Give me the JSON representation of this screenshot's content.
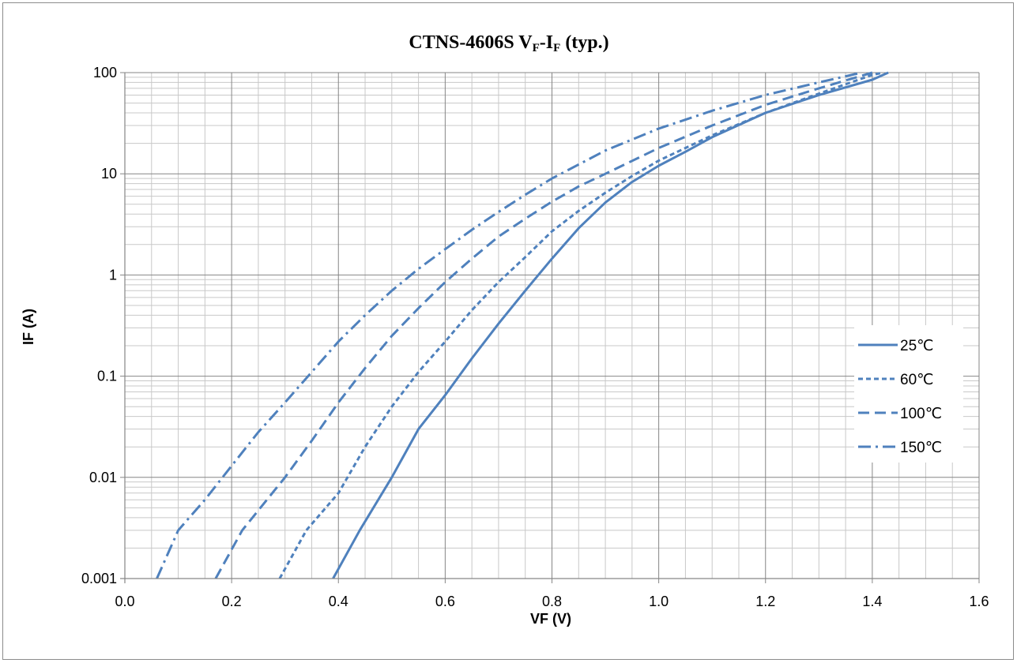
{
  "chart_data": {
    "type": "line",
    "title": {
      "main": "CTNS-4606S V",
      "sub1": "F",
      "mid": "-I",
      "sub2": "F",
      "tail": " (typ.)"
    },
    "xlabel": "VF (V)",
    "ylabel": "IF (A)",
    "xlim": [
      0.0,
      1.6
    ],
    "ylim": [
      0.001,
      100
    ],
    "y_scale": "log",
    "x_ticks": [
      "0.0",
      "0.2",
      "0.4",
      "0.6",
      "0.8",
      "1.0",
      "1.2",
      "1.4",
      "1.6"
    ],
    "x_tick_values": [
      0.0,
      0.2,
      0.4,
      0.6,
      0.8,
      1.0,
      1.2,
      1.4,
      1.6
    ],
    "y_ticks": [
      "0.001",
      "0.01",
      "0.1",
      "1",
      "10",
      "100"
    ],
    "y_tick_values": [
      0.001,
      0.01,
      0.1,
      1,
      10,
      100
    ],
    "grid": true,
    "legend_position": "right",
    "series": [
      {
        "name": "25℃",
        "style": "solid",
        "color": "#4f81bd",
        "points": [
          [
            0.39,
            0.001
          ],
          [
            0.44,
            0.003
          ],
          [
            0.5,
            0.01
          ],
          [
            0.55,
            0.03
          ],
          [
            0.6,
            0.065
          ],
          [
            0.65,
            0.15
          ],
          [
            0.7,
            0.33
          ],
          [
            0.75,
            0.7
          ],
          [
            0.8,
            1.45
          ],
          [
            0.85,
            2.9
          ],
          [
            0.9,
            5.2
          ],
          [
            0.95,
            8.3
          ],
          [
            1.0,
            12.0
          ],
          [
            1.05,
            16.5
          ],
          [
            1.1,
            23.0
          ],
          [
            1.2,
            40.0
          ],
          [
            1.3,
            60.0
          ],
          [
            1.4,
            85.0
          ],
          [
            1.43,
            100.0
          ]
        ]
      },
      {
        "name": "60℃",
        "style": "dotted",
        "color": "#4f81bd",
        "points": [
          [
            0.29,
            0.001
          ],
          [
            0.34,
            0.003
          ],
          [
            0.4,
            0.007
          ],
          [
            0.45,
            0.02
          ],
          [
            0.5,
            0.05
          ],
          [
            0.55,
            0.11
          ],
          [
            0.6,
            0.22
          ],
          [
            0.65,
            0.45
          ],
          [
            0.7,
            0.85
          ],
          [
            0.75,
            1.5
          ],
          [
            0.8,
            2.7
          ],
          [
            0.85,
            4.3
          ],
          [
            0.9,
            6.5
          ],
          [
            0.95,
            9.5
          ],
          [
            1.0,
            13.5
          ],
          [
            1.1,
            24.0
          ],
          [
            1.2,
            40.0
          ],
          [
            1.3,
            62.0
          ],
          [
            1.4,
            95.0
          ],
          [
            1.42,
            100.0
          ]
        ]
      },
      {
        "name": "100℃",
        "style": "dashed",
        "color": "#4f81bd",
        "points": [
          [
            0.17,
            0.001
          ],
          [
            0.22,
            0.003
          ],
          [
            0.3,
            0.01
          ],
          [
            0.35,
            0.023
          ],
          [
            0.4,
            0.055
          ],
          [
            0.45,
            0.12
          ],
          [
            0.5,
            0.25
          ],
          [
            0.55,
            0.47
          ],
          [
            0.6,
            0.85
          ],
          [
            0.65,
            1.45
          ],
          [
            0.7,
            2.4
          ],
          [
            0.75,
            3.6
          ],
          [
            0.8,
            5.3
          ],
          [
            0.85,
            7.5
          ],
          [
            0.9,
            10.0
          ],
          [
            1.0,
            18.0
          ],
          [
            1.1,
            30.0
          ],
          [
            1.2,
            48.0
          ],
          [
            1.3,
            70.0
          ],
          [
            1.4,
            100.0
          ]
        ]
      },
      {
        "name": "150℃",
        "style": "dash-dot",
        "color": "#4f81bd",
        "points": [
          [
            0.06,
            0.001
          ],
          [
            0.1,
            0.003
          ],
          [
            0.15,
            0.006
          ],
          [
            0.2,
            0.013
          ],
          [
            0.25,
            0.028
          ],
          [
            0.3,
            0.055
          ],
          [
            0.35,
            0.11
          ],
          [
            0.4,
            0.22
          ],
          [
            0.45,
            0.4
          ],
          [
            0.5,
            0.7
          ],
          [
            0.55,
            1.15
          ],
          [
            0.6,
            1.8
          ],
          [
            0.65,
            2.8
          ],
          [
            0.7,
            4.2
          ],
          [
            0.75,
            6.2
          ],
          [
            0.8,
            9.0
          ],
          [
            0.9,
            17.0
          ],
          [
            1.0,
            28.0
          ],
          [
            1.1,
            42.0
          ],
          [
            1.2,
            60.0
          ],
          [
            1.3,
            80.0
          ],
          [
            1.38,
            100.0
          ]
        ]
      }
    ]
  }
}
